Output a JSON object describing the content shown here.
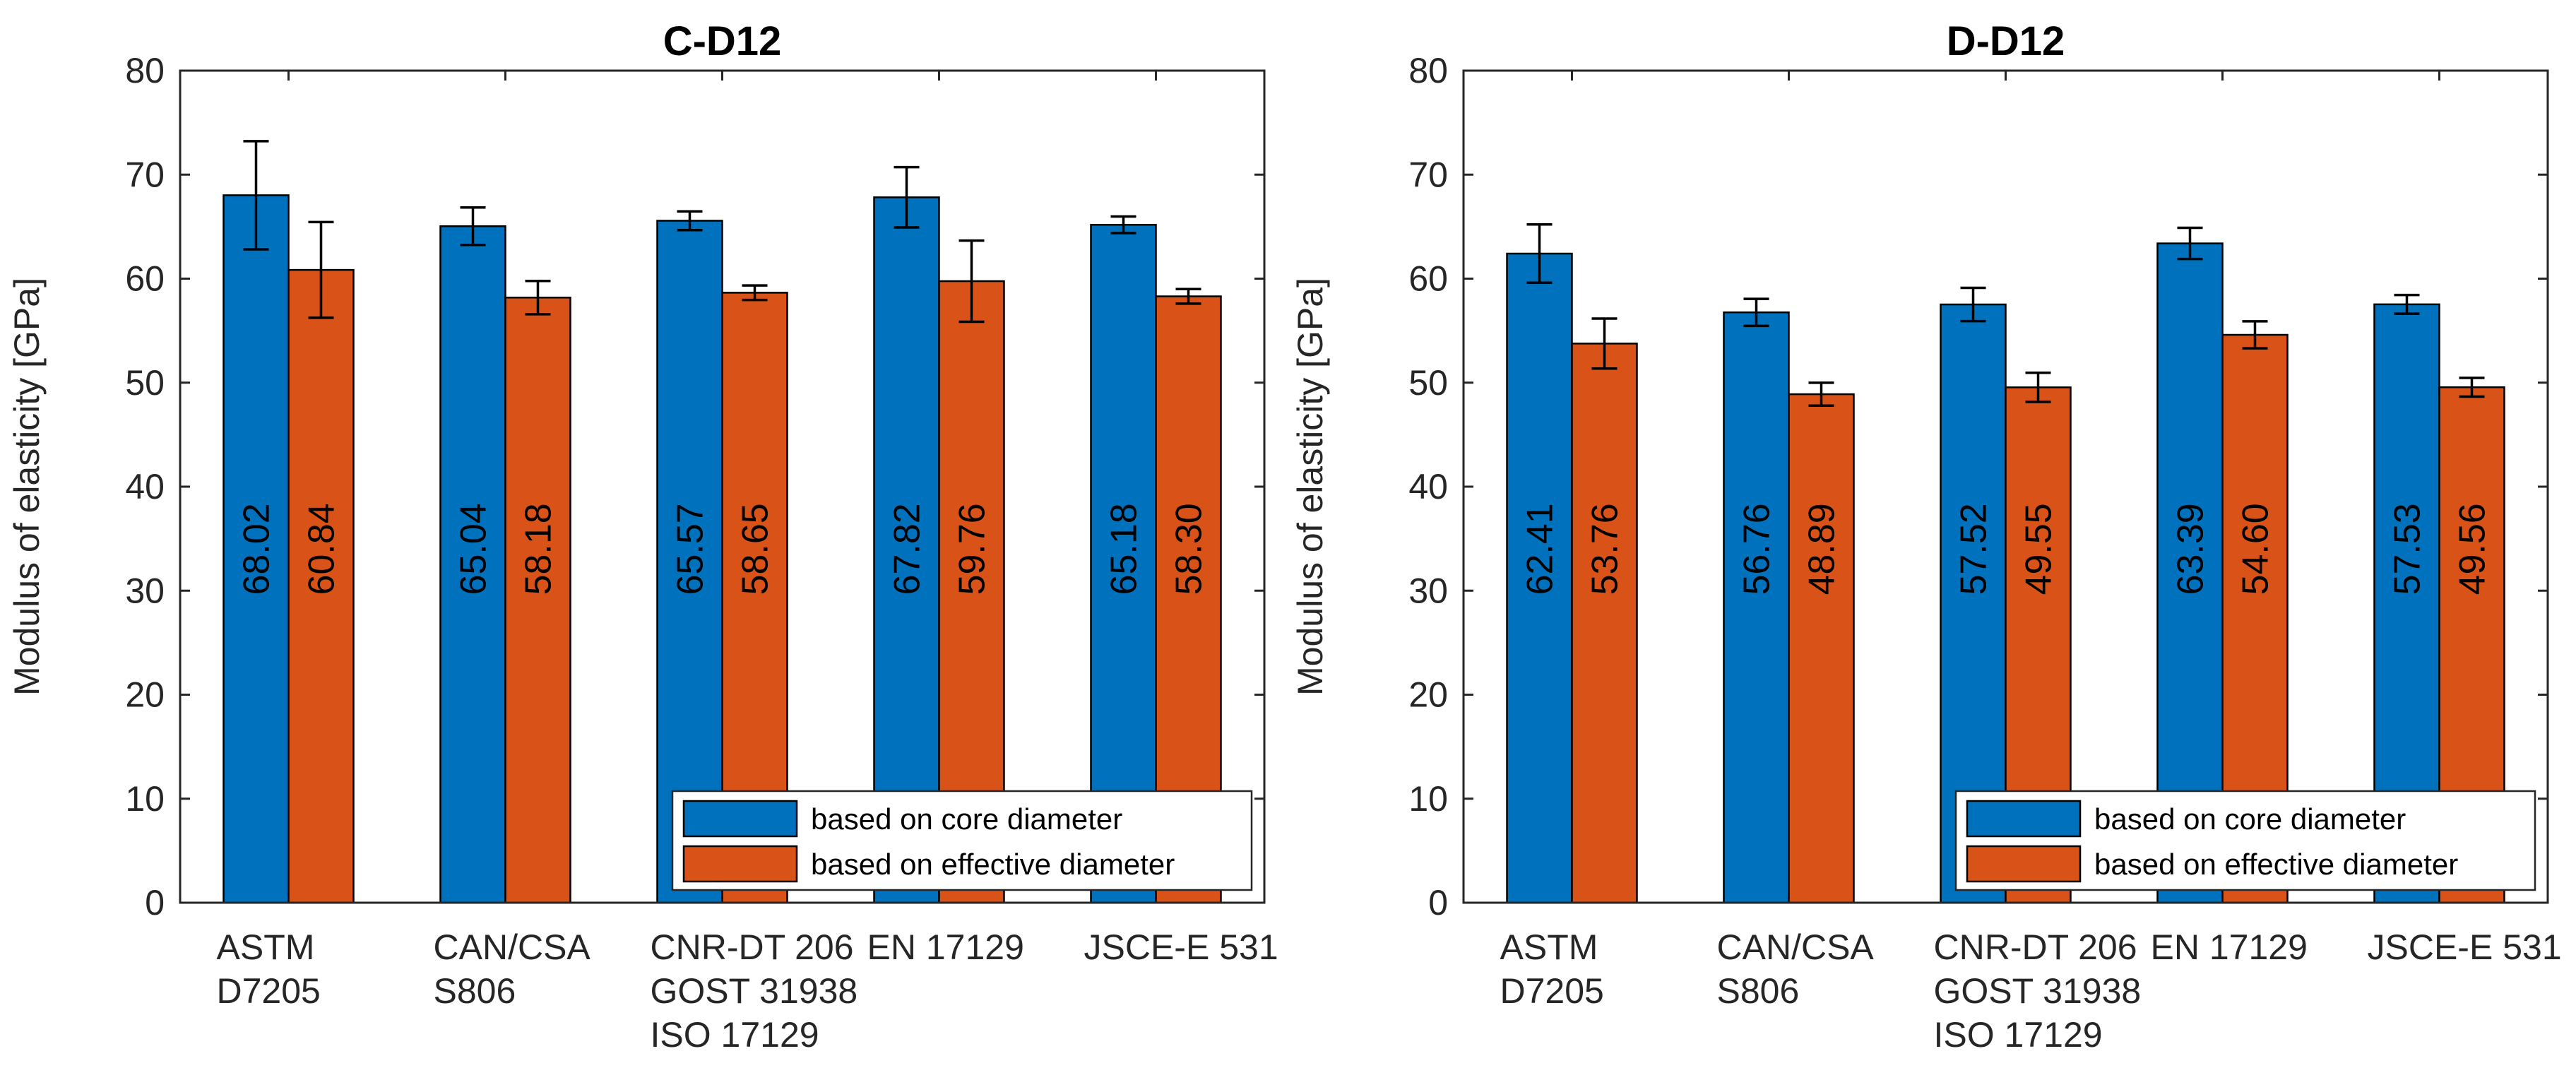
{
  "chart_data": [
    {
      "type": "bar",
      "title": "C-D12",
      "ylabel": "Modulus of elasticity [GPa]",
      "xlabel": "",
      "ylim": [
        0,
        80
      ],
      "yticks": [
        0,
        10,
        20,
        30,
        40,
        50,
        60,
        70,
        80
      ],
      "categories": [
        [
          "ASTM",
          "D7205"
        ],
        [
          "CAN/CSA",
          "S806"
        ],
        [
          "CNR-DT 206",
          "GOST 31938",
          "ISO 17129"
        ],
        [
          "EN 17129"
        ],
        [
          "JSCE-E 531"
        ]
      ],
      "series": [
        {
          "name": "based on core diameter",
          "color": "#0072BD",
          "values": [
            68.02,
            65.04,
            65.57,
            67.82,
            65.18
          ],
          "labels": [
            "68.02",
            "65.04",
            "65.57",
            "67.82",
            "65.18"
          ],
          "error": [
            5.2,
            1.8,
            0.9,
            2.9,
            0.8
          ]
        },
        {
          "name": "based on effective diameter",
          "color": "#D95319",
          "values": [
            60.84,
            58.18,
            58.65,
            59.76,
            58.3
          ],
          "labels": [
            "60.84",
            "58.18",
            "58.65",
            "59.76",
            "58.30"
          ],
          "error": [
            4.6,
            1.6,
            0.7,
            3.9,
            0.7
          ]
        }
      ],
      "legend_position": "bottom-right",
      "grid": false
    },
    {
      "type": "bar",
      "title": "D-D12",
      "ylabel": "Modulus of elasticity [GPa]",
      "xlabel": "",
      "ylim": [
        0,
        80
      ],
      "yticks": [
        0,
        10,
        20,
        30,
        40,
        50,
        60,
        70,
        80
      ],
      "categories": [
        [
          "ASTM",
          "D7205"
        ],
        [
          "CAN/CSA",
          "S806"
        ],
        [
          "CNR-DT 206",
          "GOST 31938",
          "ISO 17129"
        ],
        [
          "EN 17129"
        ],
        [
          "JSCE-E 531"
        ]
      ],
      "series": [
        {
          "name": "based on core diameter",
          "color": "#0072BD",
          "values": [
            62.41,
            56.76,
            57.52,
            63.39,
            57.53
          ],
          "labels": [
            "62.41",
            "56.76",
            "57.52",
            "63.39",
            "57.53"
          ],
          "error": [
            2.8,
            1.3,
            1.6,
            1.5,
            0.9
          ]
        },
        {
          "name": "based on effective diameter",
          "color": "#D95319",
          "values": [
            53.76,
            48.89,
            49.55,
            54.6,
            49.56
          ],
          "labels": [
            "53.76",
            "48.89",
            "49.55",
            "54.60",
            "49.56"
          ],
          "error": [
            2.4,
            1.1,
            1.4,
            1.3,
            0.9
          ]
        }
      ],
      "legend_position": "bottom-right",
      "grid": false
    }
  ]
}
